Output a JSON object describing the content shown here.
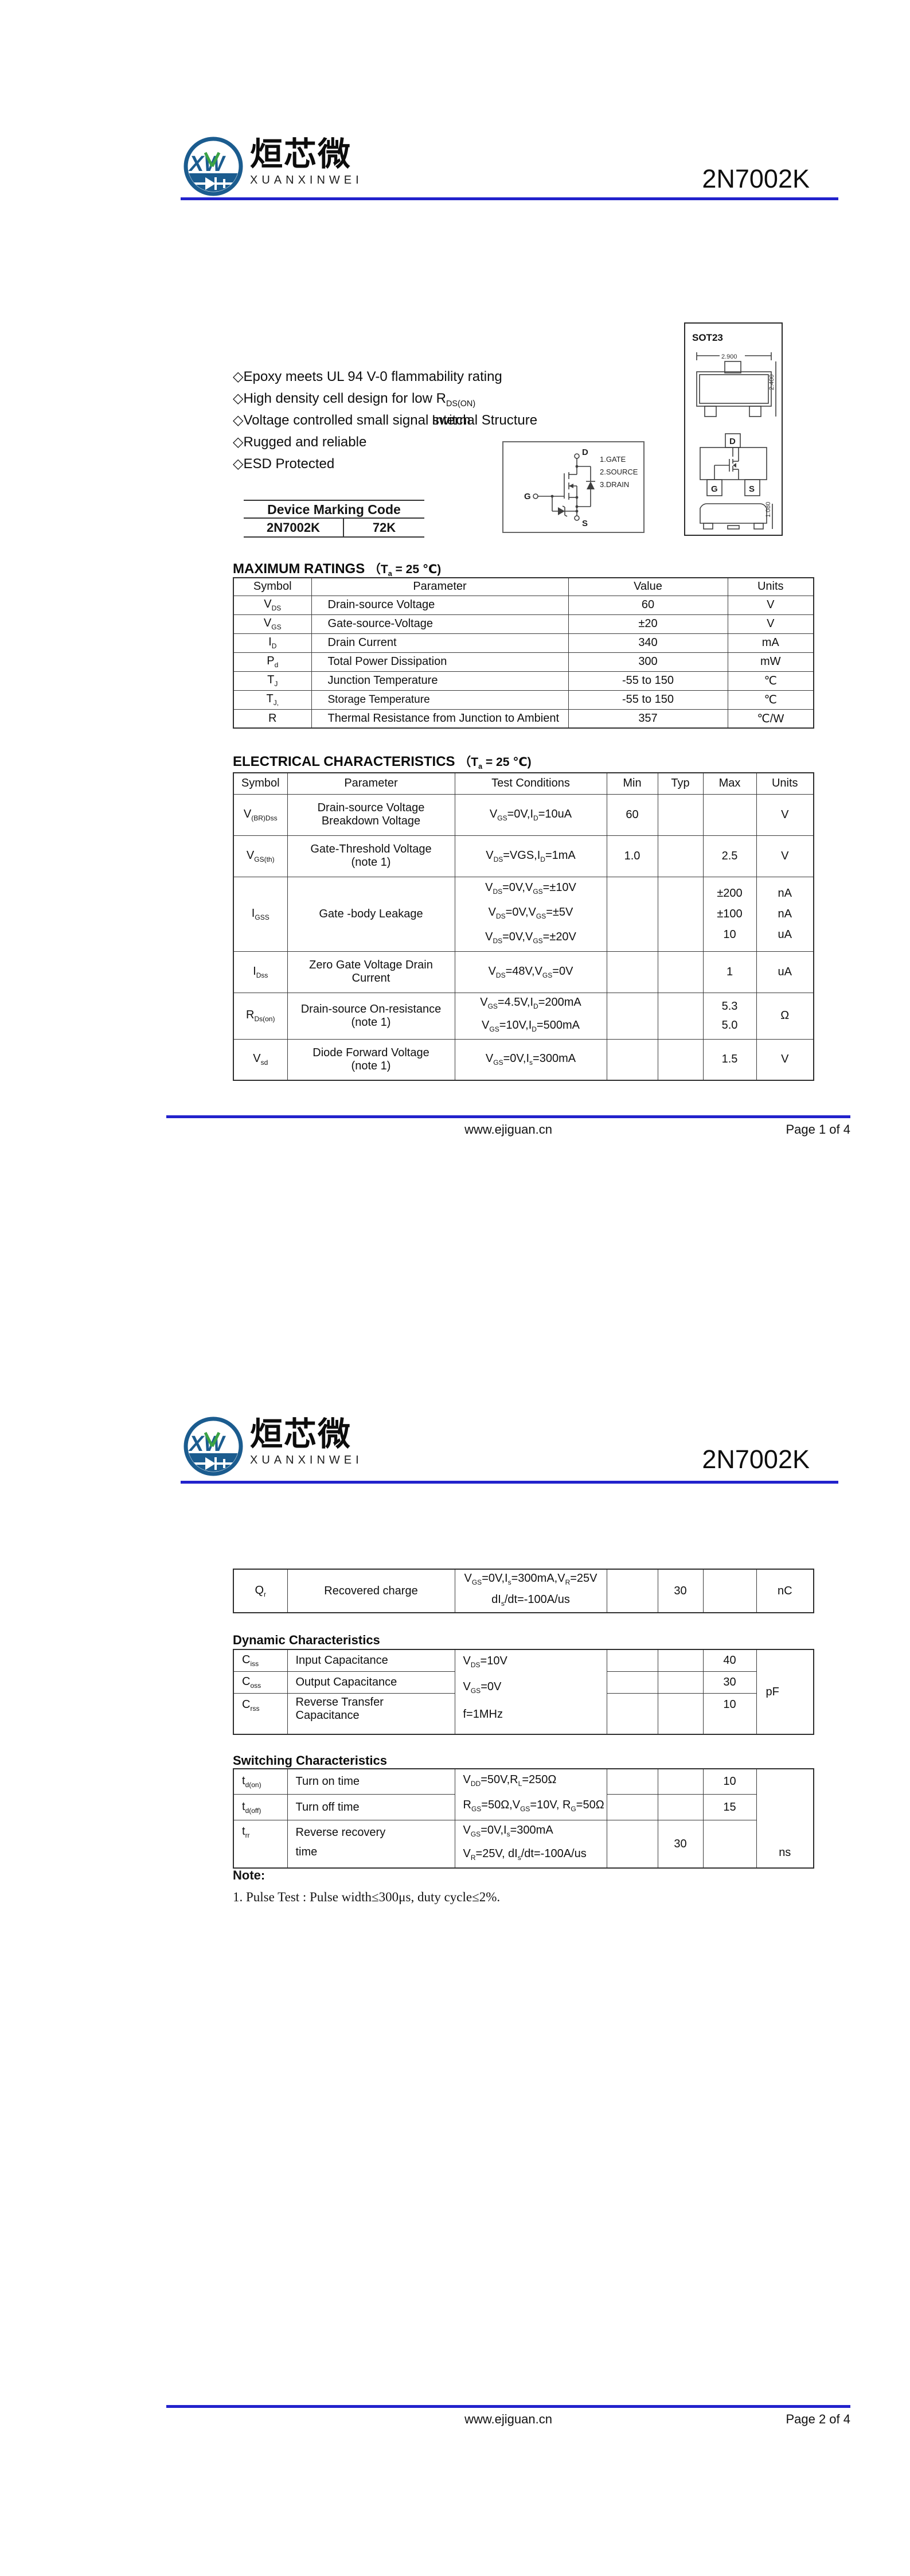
{
  "colors": {
    "accent_blue": "#2222cc",
    "logo_blue": "#1b5c8f",
    "logo_green": "#3aa244"
  },
  "brand": {
    "monogram": "XW",
    "name_cn": "烜芯微",
    "name_en": "XUANXINWEI"
  },
  "page1": {
    "part_number": "2N7002K",
    "features": [
      "◇Epoxy meets UL 94 V-0 flammability rating",
      "◇High density cell design for low R~DS(ON)~",
      "◇Voltage controlled small signal switch",
      "◇Rugged and reliable",
      "◇ESD Protected"
    ],
    "internal_structure": {
      "title": "Internal Structure",
      "pin1": "1.GATE",
      "pin2": "2.SOURCE",
      "pin3": "3.DRAIN",
      "drain": "D",
      "gate": "G",
      "source": "S"
    },
    "package": {
      "name": "SOT23",
      "dim_width": "2.900",
      "dim_height": "2.400",
      "dim_thickness": "1.080",
      "pin_d": "D",
      "pin_g": "G",
      "pin_s": "S"
    },
    "marking": {
      "header": "Device Marking Code",
      "device": "2N7002K",
      "code": "72K"
    },
    "max_ratings": {
      "title": "MAXIMUM RATINGS",
      "condition": "（T~a~ = 25 ℃)",
      "headers": [
        "Symbol",
        "Parameter",
        "Value",
        "Units"
      ],
      "rows": [
        {
          "symbol": "V~DS~",
          "parameter": "Drain-source Voltage",
          "value": "60",
          "units": "V"
        },
        {
          "symbol": "V~GS~",
          "parameter": "Gate-source-Voltage",
          "value": "±20",
          "units": "V"
        },
        {
          "symbol": "I~D~",
          "parameter": "Drain Current",
          "value": "340",
          "units": "mA"
        },
        {
          "symbol": "P~d~",
          "parameter": "Total Power Dissipation",
          "value": "300",
          "units": "mW"
        },
        {
          "symbol": "T~J~",
          "parameter": "Junction Temperature",
          "value": "-55 to 150",
          "units": "℃"
        },
        {
          "symbol": "T~J,~",
          "parameter": "Storage Temperature",
          "value": "-55 to 150",
          "units": "℃"
        },
        {
          "symbol": "R",
          "parameter": "Thermal Resistance from Junction to Ambient",
          "value": "357",
          "units": "℃/W"
        }
      ]
    },
    "electrical": {
      "title": "ELECTRICAL CHARACTERISTICS",
      "condition": "（T~a~ = 25 ℃)",
      "headers": [
        "Symbol",
        "Parameter",
        "Test Conditions",
        "Min",
        "Typ",
        "Max",
        "Units"
      ],
      "rows": [
        {
          "symbol": "V~(BR)Dss~",
          "parameter": "Drain-source Voltage\nBreakdown Voltage",
          "conditions": "V~GS~=0V,I~D~=10uA",
          "min": "60",
          "typ": "",
          "max": "",
          "units": "V"
        },
        {
          "symbol": "V~GS(th)~",
          "parameter": "Gate-Threshold Voltage\n(note 1)",
          "conditions": "V~DS~=VGS,I~D~=1mA",
          "min": "1.0",
          "typ": "",
          "max": "2.5",
          "units": "V"
        },
        {
          "symbol": "I~GSS~",
          "parameter": "Gate -body Leakage",
          "conditions_lines": [
            "V~DS~=0V,V~GS~=±10V",
            "V~DS~=0V,V~GS~=±5V",
            "V~DS~=0V,V~GS~=±20V"
          ],
          "max_lines": [
            "±200",
            "±100",
            "10"
          ],
          "units_lines": [
            "nA",
            "nA",
            "uA"
          ]
        },
        {
          "symbol": "I~Dss~",
          "parameter": "Zero Gate Voltage Drain\nCurrent",
          "conditions": "V~DS~=48V,V~GS~=0V",
          "min": "",
          "typ": "",
          "max": "1",
          "units": "uA"
        },
        {
          "symbol": "R~Ds(on)~",
          "parameter": "Drain-source On-resistance\n(note 1)",
          "conditions_lines": [
            "V~GS~=4.5V,I~D~=200mA",
            "V~GS~=10V,I~D~=500mA"
          ],
          "max_lines": [
            "5.3",
            "5.0"
          ],
          "units": "Ω"
        },
        {
          "symbol": "V~sd~",
          "parameter": "Diode Forward Voltage\n(note 1)",
          "conditions": "V~GS~=0V,I~s~=300mA",
          "min": "",
          "typ": "",
          "max": "1.5",
          "units": "V"
        }
      ]
    },
    "footer": {
      "site": "www.ejiguan.cn",
      "page": "Page 1 of 4"
    }
  },
  "page2": {
    "part_number": "2N7002K",
    "qr": {
      "symbol": "Q~r~",
      "parameter": "Recovered charge",
      "conditions": "V~GS~=0V,I~s~=300mA,V~R~=25V\ndI~s~/dt=-100A/us",
      "min": "",
      "typ": "30",
      "max": "",
      "units": "nC"
    },
    "dynamic": {
      "title": "Dynamic Characteristics",
      "rows": [
        {
          "symbol": "C~iss~",
          "parameter": "Input Capacitance",
          "condition": "V~DS~=10V",
          "max": "40"
        },
        {
          "symbol": "C~oss~",
          "parameter": "Output Capacitance",
          "condition": "V~GS~=0V",
          "max": "30"
        },
        {
          "symbol": "C~rss~",
          "parameter": "Reverse Transfer\nCapacitance",
          "condition": "f=1MHz",
          "max": "10"
        }
      ],
      "units": "pF"
    },
    "switching": {
      "title": "Switching Characteristics",
      "rows": [
        {
          "symbol": "t~d(on)~",
          "parameter": "Turn on time",
          "max": "10"
        },
        {
          "symbol": "t~d(off)~",
          "parameter": "Turn off time",
          "max": "15"
        },
        {
          "symbol": "t~rr~",
          "parameter": "Reverse recovery\ntime",
          "typ": "30"
        }
      ],
      "cond_on_off": "V~DD~=50V,R~L~=250Ω\nR~GS~=50Ω,V~GS~=10V, R~G~=50Ω",
      "cond_trr": "V~GS~=0V,I~s~=300mA\nV~R~=25V, dI~s~/dt=-100A/us",
      "units": "ns"
    },
    "note": {
      "title": "Note:",
      "item1": "1. Pulse Test : Pulse width≤300μs, duty cycle≤2%."
    },
    "footer": {
      "site": "www.ejiguan.cn",
      "page": "Page 2 of 4"
    }
  }
}
